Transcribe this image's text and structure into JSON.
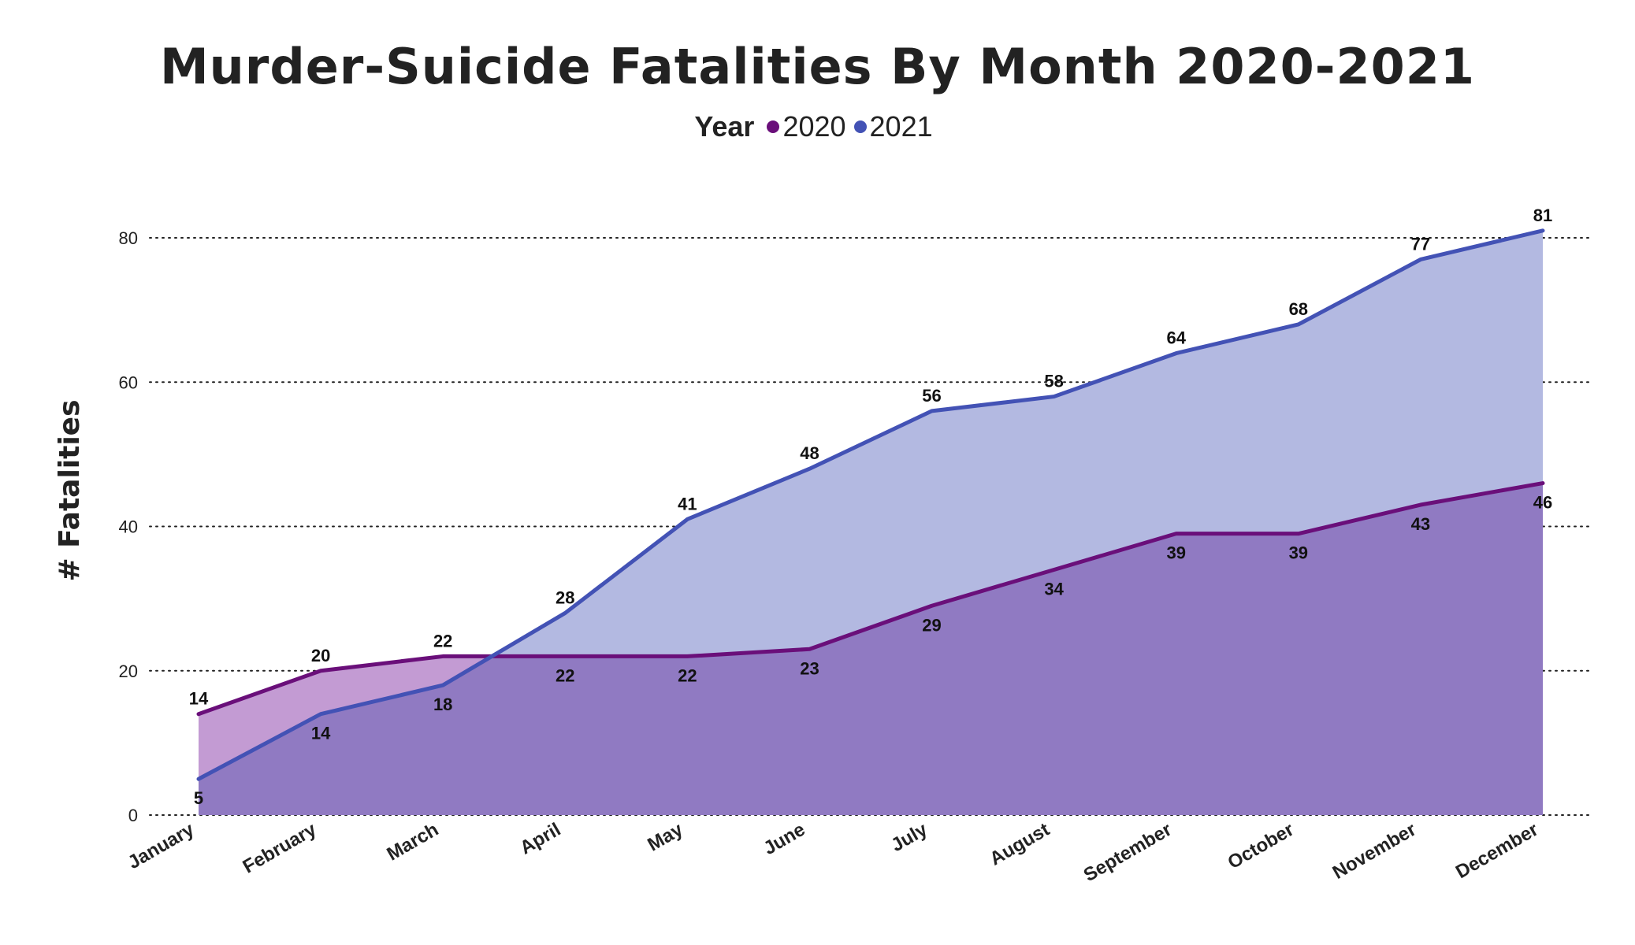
{
  "chart_data": {
    "type": "area",
    "title": "Murder-Suicide Fatalities By Month 2020-2021",
    "legend_title": "Year",
    "legend_position": "top-center",
    "ylabel": "# Fatalities",
    "xlabel": "",
    "ylim": [
      0,
      80
    ],
    "yticks": [
      0,
      20,
      40,
      60,
      80
    ],
    "grid": "dotted horizontal",
    "categories": [
      "January",
      "February",
      "March",
      "April",
      "May",
      "June",
      "July",
      "August",
      "September",
      "October",
      "November",
      "December"
    ],
    "series": [
      {
        "name": "2020",
        "values": [
          14,
          20,
          22,
          22,
          22,
          23,
          29,
          34,
          39,
          39,
          43,
          46
        ],
        "line_color": "#6a0f7a",
        "fill_color": "#c39bd3"
      },
      {
        "name": "2021",
        "values": [
          5,
          14,
          18,
          28,
          41,
          48,
          56,
          58,
          64,
          68,
          77,
          81
        ],
        "line_color": "#4352b5",
        "fill_color": "#b3b9e1"
      }
    ],
    "overlap_fill_color": "#907ac2"
  }
}
